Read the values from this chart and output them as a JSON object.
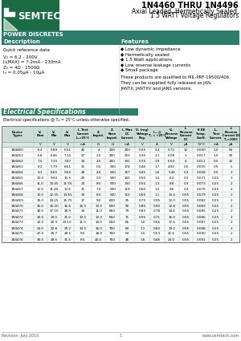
{
  "title": "1N4460 THRU 1N4496",
  "subtitle": "Axial Leaded, Hermetically Sealed,\n1.5 WATT Voltage Regulators",
  "section_label": "POWER DISCRETES",
  "desc_label": "Description",
  "features_label": "Features",
  "desc_lines": [
    "Quick reference data",
    "",
    "V₂ = 6.2 - 200V",
    "I₂(MAX) = 7.2mA - 230mA",
    "Z₂ = 4Ω - 1500Ω",
    "Iₙ = 0.05μA - 10μA"
  ],
  "features": [
    "Low dynamic impedance",
    "Hermetically sealed",
    "1.5 Watt applications",
    "Low reverse leakage currents",
    "Small package"
  ],
  "mil_text": "These products are qualified to MIL-PRF-19500/406.\nThey can be supplied fully released as JAN,\nJANTX, JANTXV and JANS versions.",
  "elec_spec_label": "Electrical Specifications",
  "elec_spec_note": "Electrical specifications @ Tₐ = 25°C unless otherwise specified.",
  "col_headers": [
    "Device\nTypes",
    "V₂\nNom",
    "V₂\nMin",
    "V₂\nMax",
    "I₂ Test\nCurrent\nI₂ₙ=25°C",
    "Z₂\nImped.",
    "Z₂\nKnee\nImped.",
    "I₂ Max\nDC\nCurrent",
    "V₂ (reg)\nVoltage\nReg.",
    "Iₐₙ @\nTₐ = +25°C",
    "Vₙ\nReverse\nVoltage",
    "Iₙ\nReverse\nCurrent\nDC",
    "θ KE\nTemp.\nCoeff.",
    "Iₙₙ\nTest\nCurrent",
    "Iₙ\nReverse\nCurrent DC\nTₐ=100C"
  ],
  "col_units": [
    "",
    "V",
    "V",
    "V",
    "mA",
    "Ω",
    "Ω",
    "mA",
    "V",
    "A",
    "V",
    "μA",
    "%/°C",
    "mA",
    "μA"
  ],
  "table_data": [
    [
      "1N4460",
      "6.2",
      "5.89",
      "6.51",
      "40",
      "4",
      "200",
      "200",
      "0.35",
      "2.3",
      "5.72",
      "10",
      "0.050",
      "1.0",
      "50"
    ],
    [
      "1N4461",
      "6.8",
      "6.46",
      "7.14",
      "37",
      "2.5",
      "200",
      "210",
      "0.30",
      "2.1",
      "6.08",
      "3",
      "0.017",
      "1.0",
      "20"
    ],
    [
      "1N4462",
      "7.5",
      "7.13",
      "7.87",
      "34",
      "2.5",
      "200",
      "191",
      "0.75",
      "1.9",
      "6.50",
      "4",
      "0.011",
      "0.5",
      "10"
    ],
    [
      "1N4463",
      "8.2",
      "7.79",
      "8.61",
      "31",
      "0.5",
      "500",
      "174",
      "0.48",
      "1.7",
      "4.92",
      "0.5",
      "0.005",
      "0.5",
      "5"
    ],
    [
      "1N4464",
      "9.1",
      "8.65",
      "9.55",
      "28",
      "4.0",
      "500",
      "157",
      "0.45",
      "1.6",
      "5.46",
      "0.3",
      "0.068",
      "0.5",
      "3"
    ],
    [
      "1N4465",
      "10.0",
      "9.50",
      "10.5",
      "25",
      "5.0",
      "500",
      "143",
      "0.50",
      "1.4",
      "6.0",
      "0.3",
      "0.071",
      "0.25",
      "3"
    ],
    [
      "1N4466",
      "11.0",
      "10.45",
      "11.55",
      "23",
      "8.0",
      "500",
      "130",
      "0.55",
      "1.3",
      "8.8",
      "0.3",
      "0.073",
      "0.25",
      "2"
    ],
    [
      "1N4467",
      "12.0",
      "11.40",
      "12.6",
      "21",
      "7.0",
      "500",
      "119",
      "0.60",
      "1.2",
      "9.6",
      "0.2",
      "0.076",
      "0.25",
      "2"
    ],
    [
      "1N4468",
      "13.0",
      "12.35",
      "13.65",
      "19",
      "8.0",
      "500",
      "110",
      "0.65",
      "1.1",
      "10.4",
      "0.05",
      "0.079",
      "0.25",
      "2"
    ],
    [
      "1N4469",
      "15.0",
      "14.25",
      "15.75",
      "17",
      "9.0",
      "600",
      "95",
      "0.75",
      "0.95",
      "12.0",
      "0.05",
      "0.082",
      "0.25",
      "2"
    ],
    [
      "1N4470",
      "16.0",
      "15.20",
      "16.8",
      "15.5",
      "10.0",
      "600",
      "90",
      "0.80",
      "0.90",
      "12.8",
      "0.05",
      "0.083",
      "0.25",
      "2"
    ],
    [
      "1N4471",
      "18.0",
      "17.10",
      "18.9",
      "14",
      "11.0",
      "650",
      "79",
      "0.83",
      "0.78",
      "14.4",
      "0.05",
      "0.085",
      "0.25",
      "2"
    ],
    [
      "1N4472",
      "20.0",
      "19.0",
      "21.0",
      "12.5",
      "12.0",
      "650",
      "71",
      "0.95",
      "0.71",
      "16.0",
      "0.05",
      "0.086",
      "0.25",
      "2"
    ],
    [
      "1N4473",
      "22.0",
      "20.9",
      "23.10",
      "11.5",
      "14.0",
      "650",
      "65",
      "1.0",
      "0.65",
      "17.6",
      "0.05",
      "0.087",
      "0.25",
      "2"
    ],
    [
      "1N4474",
      "24.0",
      "22.8",
      "25.2",
      "10.5",
      "16.0",
      "700",
      "60",
      "1.1",
      "0.60",
      "19.2",
      "0.05",
      "0.088",
      "0.25",
      "2"
    ],
    [
      "1N4475",
      "27.0",
      "25.7",
      "28.5",
      "9.5",
      "18.0",
      "700",
      "53",
      "1.5",
      "0.53",
      "21.6",
      "0.05",
      "0.090",
      "0.25",
      "2"
    ],
    [
      "1N4476",
      "30.0",
      "28.5",
      "31.5",
      "8.5",
      "20.0",
      "750",
      "48",
      "1.6",
      "0.48",
      "24.0",
      "0.05",
      "0.091",
      "0.25",
      "2"
    ]
  ],
  "green_dark": "#1b6b45",
  "teal_color": "#2e7d6a",
  "footer_text": "Revision: July 2010",
  "footer_right": "www.semtech.com",
  "bg_color": "#ffffff"
}
